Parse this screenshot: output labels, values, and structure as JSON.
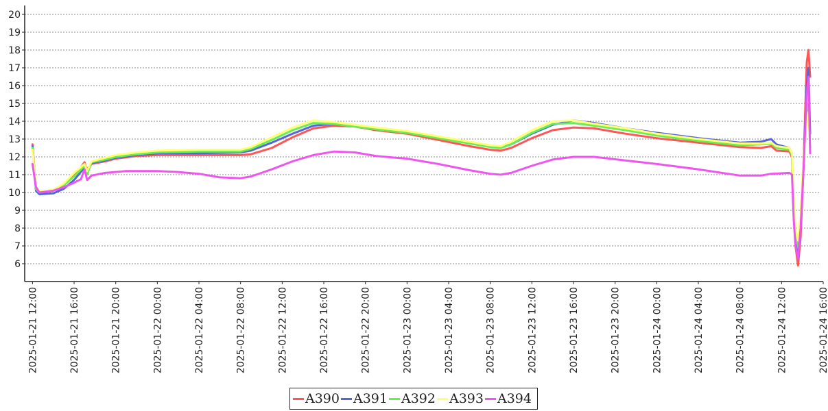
{
  "chart_data": {
    "type": "line",
    "title": "",
    "xlabel": "",
    "ylabel": "",
    "ylim": [
      5,
      20.5
    ],
    "xlim": [
      "2025-01-21 11:15",
      "2025-01-24 16:00"
    ],
    "yticks": [
      "6",
      "7",
      "8",
      "9",
      "10",
      "11",
      "12",
      "13",
      "14",
      "15",
      "16",
      "17",
      "18",
      "19",
      "20"
    ],
    "xticks": [
      "2025-01-21 12:00",
      "2025-01-21 16:00",
      "2025-01-21 20:00",
      "2025-01-22 00:00",
      "2025-01-22 04:00",
      "2025-01-22 08:00",
      "2025-01-22 12:00",
      "2025-01-22 16:00",
      "2025-01-22 20:00",
      "2025-01-23 00:00",
      "2025-01-23 04:00",
      "2025-01-23 08:00",
      "2025-01-23 12:00",
      "2025-01-23 16:00",
      "2025-01-23 20:00",
      "2025-01-24 00:00",
      "2025-01-24 04:00",
      "2025-01-24 08:00",
      "2025-01-24 12:00",
      "2025-01-24 16:00"
    ],
    "grid": true,
    "legend_position": "bottom-center",
    "series": [
      {
        "name": "A390",
        "color": "#ff5555",
        "points": [
          [
            "2025-01-21 12:00",
            12.7
          ],
          [
            "2025-01-21 12:20",
            10.2
          ],
          [
            "2025-01-21 12:40",
            9.95
          ],
          [
            "2025-01-21 13:30",
            10.05
          ],
          [
            "2025-01-21 14:30",
            10.2
          ],
          [
            "2025-01-21 15:30",
            10.7
          ],
          [
            "2025-01-21 16:30",
            11.3
          ],
          [
            "2025-01-21 17:00",
            11.7
          ],
          [
            "2025-01-21 17:15",
            11.2
          ],
          [
            "2025-01-21 17:40",
            11.6
          ],
          [
            "2025-01-21 19:00",
            11.75
          ],
          [
            "2025-01-21 20:00",
            11.9
          ],
          [
            "2025-01-21 22:00",
            12.05
          ],
          [
            "2025-01-22 00:00",
            12.1
          ],
          [
            "2025-01-22 04:00",
            12.1
          ],
          [
            "2025-01-22 08:00",
            12.1
          ],
          [
            "2025-01-22 09:00",
            12.15
          ],
          [
            "2025-01-22 11:00",
            12.5
          ],
          [
            "2025-01-22 13:00",
            13.1
          ],
          [
            "2025-01-22 15:00",
            13.6
          ],
          [
            "2025-01-22 17:00",
            13.75
          ],
          [
            "2025-01-22 19:00",
            13.7
          ],
          [
            "2025-01-22 21:00",
            13.5
          ],
          [
            "2025-01-23 00:00",
            13.3
          ],
          [
            "2025-01-23 03:00",
            12.95
          ],
          [
            "2025-01-23 06:00",
            12.6
          ],
          [
            "2025-01-23 08:00",
            12.4
          ],
          [
            "2025-01-23 09:00",
            12.35
          ],
          [
            "2025-01-23 10:00",
            12.5
          ],
          [
            "2025-01-23 12:00",
            13.05
          ],
          [
            "2025-01-23 14:00",
            13.5
          ],
          [
            "2025-01-23 16:00",
            13.65
          ],
          [
            "2025-01-23 18:00",
            13.6
          ],
          [
            "2025-01-23 21:00",
            13.3
          ],
          [
            "2025-01-24 00:00",
            13.05
          ],
          [
            "2025-01-24 04:00",
            12.8
          ],
          [
            "2025-01-24 08:00",
            12.55
          ],
          [
            "2025-01-24 10:00",
            12.5
          ],
          [
            "2025-01-24 11:00",
            12.6
          ],
          [
            "2025-01-24 11:30",
            12.35
          ],
          [
            "2025-01-24 12:45",
            12.3
          ],
          [
            "2025-01-24 13:00",
            12.0
          ],
          [
            "2025-01-24 13:10",
            9.0
          ],
          [
            "2025-01-24 13:20",
            7.0
          ],
          [
            "2025-01-24 13:35",
            5.9
          ],
          [
            "2025-01-24 13:50",
            7.5
          ],
          [
            "2025-01-24 14:05",
            11.0
          ],
          [
            "2025-01-24 14:25",
            17.3
          ],
          [
            "2025-01-24 14:35",
            18.0
          ],
          [
            "2025-01-24 14:45",
            16.5
          ]
        ]
      },
      {
        "name": "A391",
        "color": "#5566dd",
        "points": [
          [
            "2025-01-21 12:00",
            12.6
          ],
          [
            "2025-01-21 12:20",
            10.1
          ],
          [
            "2025-01-21 12:40",
            9.9
          ],
          [
            "2025-01-21 14:00",
            9.95
          ],
          [
            "2025-01-21 15:00",
            10.2
          ],
          [
            "2025-01-21 16:00",
            10.7
          ],
          [
            "2025-01-21 17:00",
            11.4
          ],
          [
            "2025-01-21 17:15",
            11.3
          ],
          [
            "2025-01-21 17:40",
            11.65
          ],
          [
            "2025-01-21 19:00",
            11.8
          ],
          [
            "2025-01-21 20:00",
            11.95
          ],
          [
            "2025-01-21 22:00",
            12.1
          ],
          [
            "2025-01-22 00:00",
            12.2
          ],
          [
            "2025-01-22 04:00",
            12.2
          ],
          [
            "2025-01-22 08:00",
            12.25
          ],
          [
            "2025-01-22 09:00",
            12.35
          ],
          [
            "2025-01-22 11:00",
            12.8
          ],
          [
            "2025-01-22 13:00",
            13.3
          ],
          [
            "2025-01-22 15:00",
            13.75
          ],
          [
            "2025-01-22 17:00",
            13.85
          ],
          [
            "2025-01-22 19:00",
            13.75
          ],
          [
            "2025-01-22 21:00",
            13.6
          ],
          [
            "2025-01-23 00:00",
            13.4
          ],
          [
            "2025-01-23 03:00",
            13.1
          ],
          [
            "2025-01-23 06:00",
            12.8
          ],
          [
            "2025-01-23 08:00",
            12.6
          ],
          [
            "2025-01-23 09:00",
            12.55
          ],
          [
            "2025-01-23 10:00",
            12.7
          ],
          [
            "2025-01-23 12:00",
            13.3
          ],
          [
            "2025-01-23 14:00",
            13.8
          ],
          [
            "2025-01-23 16:00",
            14.05
          ],
          [
            "2025-01-23 18:00",
            13.9
          ],
          [
            "2025-01-23 21:00",
            13.6
          ],
          [
            "2025-01-24 00:00",
            13.35
          ],
          [
            "2025-01-24 04:00",
            13.05
          ],
          [
            "2025-01-24 08:00",
            12.8
          ],
          [
            "2025-01-24 10:00",
            12.85
          ],
          [
            "2025-01-24 11:00",
            13.0
          ],
          [
            "2025-01-24 11:30",
            12.7
          ],
          [
            "2025-01-24 12:45",
            12.5
          ],
          [
            "2025-01-24 13:00",
            12.2
          ],
          [
            "2025-01-24 13:10",
            9.0
          ],
          [
            "2025-01-24 13:20",
            7.3
          ],
          [
            "2025-01-24 13:35",
            6.3
          ],
          [
            "2025-01-24 13:50",
            8.0
          ],
          [
            "2025-01-24 14:05",
            11.0
          ],
          [
            "2025-01-24 14:25",
            16.0
          ],
          [
            "2025-01-24 14:35",
            17.0
          ],
          [
            "2025-01-24 14:45",
            13.3
          ]
        ]
      },
      {
        "name": "A392",
        "color": "#66ee55",
        "points": [
          [
            "2025-01-21 12:00",
            12.5
          ],
          [
            "2025-01-21 12:20",
            10.2
          ],
          [
            "2025-01-21 12:40",
            10.0
          ],
          [
            "2025-01-21 14:00",
            10.1
          ],
          [
            "2025-01-21 15:00",
            10.4
          ],
          [
            "2025-01-21 16:00",
            10.9
          ],
          [
            "2025-01-21 17:00",
            11.5
          ],
          [
            "2025-01-21 17:15",
            11.0
          ],
          [
            "2025-01-21 17:40",
            11.7
          ],
          [
            "2025-01-21 19:00",
            11.85
          ],
          [
            "2025-01-21 20:00",
            12.0
          ],
          [
            "2025-01-21 22:00",
            12.15
          ],
          [
            "2025-01-22 00:00",
            12.25
          ],
          [
            "2025-01-22 04:00",
            12.3
          ],
          [
            "2025-01-22 08:00",
            12.3
          ],
          [
            "2025-01-22 09:00",
            12.45
          ],
          [
            "2025-01-22 11:00",
            12.95
          ],
          [
            "2025-01-22 13:00",
            13.5
          ],
          [
            "2025-01-22 15:00",
            13.9
          ],
          [
            "2025-01-22 17:00",
            13.85
          ],
          [
            "2025-01-22 19:00",
            13.7
          ],
          [
            "2025-01-22 21:00",
            13.55
          ],
          [
            "2025-01-23 00:00",
            13.35
          ],
          [
            "2025-01-23 03:00",
            13.05
          ],
          [
            "2025-01-23 06:00",
            12.75
          ],
          [
            "2025-01-23 08:00",
            12.55
          ],
          [
            "2025-01-23 09:00",
            12.5
          ],
          [
            "2025-01-23 10:00",
            12.7
          ],
          [
            "2025-01-23 12:00",
            13.35
          ],
          [
            "2025-01-23 14:00",
            13.85
          ],
          [
            "2025-01-23 16:00",
            13.9
          ],
          [
            "2025-01-23 18:00",
            13.75
          ],
          [
            "2025-01-23 21:00",
            13.5
          ],
          [
            "2025-01-24 00:00",
            13.2
          ],
          [
            "2025-01-24 04:00",
            12.9
          ],
          [
            "2025-01-24 08:00",
            12.65
          ],
          [
            "2025-01-24 10:00",
            12.7
          ],
          [
            "2025-01-24 11:00",
            12.75
          ],
          [
            "2025-01-24 11:30",
            12.5
          ],
          [
            "2025-01-24 12:45",
            12.4
          ],
          [
            "2025-01-24 13:00",
            12.1
          ],
          [
            "2025-01-24 13:10",
            9.5
          ],
          [
            "2025-01-24 13:20",
            7.8
          ],
          [
            "2025-01-24 13:35",
            7.0
          ],
          [
            "2025-01-24 13:50",
            8.5
          ],
          [
            "2025-01-24 14:05",
            11.5
          ],
          [
            "2025-01-24 14:25",
            14.5
          ],
          [
            "2025-01-24 14:35",
            15.0
          ],
          [
            "2025-01-24 14:45",
            12.5
          ]
        ]
      },
      {
        "name": "A393",
        "color": "#ffff77",
        "points": [
          [
            "2025-01-21 12:00",
            12.4
          ],
          [
            "2025-01-21 12:20",
            10.3
          ],
          [
            "2025-01-21 12:40",
            10.05
          ],
          [
            "2025-01-21 14:00",
            10.15
          ],
          [
            "2025-01-21 15:00",
            10.5
          ],
          [
            "2025-01-21 16:00",
            11.1
          ],
          [
            "2025-01-21 17:00",
            11.6
          ],
          [
            "2025-01-21 17:15",
            11.2
          ],
          [
            "2025-01-21 17:40",
            11.75
          ],
          [
            "2025-01-21 19:00",
            11.95
          ],
          [
            "2025-01-21 20:00",
            12.1
          ],
          [
            "2025-01-21 22:00",
            12.25
          ],
          [
            "2025-01-22 00:00",
            12.35
          ],
          [
            "2025-01-22 04:00",
            12.4
          ],
          [
            "2025-01-22 08:00",
            12.4
          ],
          [
            "2025-01-22 09:00",
            12.55
          ],
          [
            "2025-01-22 11:00",
            13.1
          ],
          [
            "2025-01-22 13:00",
            13.65
          ],
          [
            "2025-01-22 15:00",
            14.05
          ],
          [
            "2025-01-22 17:00",
            13.95
          ],
          [
            "2025-01-22 19:00",
            13.8
          ],
          [
            "2025-01-22 21:00",
            13.65
          ],
          [
            "2025-01-23 00:00",
            13.45
          ],
          [
            "2025-01-23 03:00",
            13.15
          ],
          [
            "2025-01-23 06:00",
            12.85
          ],
          [
            "2025-01-23 08:00",
            12.65
          ],
          [
            "2025-01-23 09:00",
            12.6
          ],
          [
            "2025-01-23 10:00",
            12.85
          ],
          [
            "2025-01-23 12:00",
            13.5
          ],
          [
            "2025-01-23 14:00",
            14.0
          ],
          [
            "2025-01-23 16:00",
            14.05
          ],
          [
            "2025-01-23 18:00",
            13.85
          ],
          [
            "2025-01-23 21:00",
            13.6
          ],
          [
            "2025-01-24 00:00",
            13.3
          ],
          [
            "2025-01-24 04:00",
            13.0
          ],
          [
            "2025-01-24 08:00",
            12.75
          ],
          [
            "2025-01-24 10:00",
            12.75
          ],
          [
            "2025-01-24 11:00",
            12.8
          ],
          [
            "2025-01-24 11:30",
            12.6
          ],
          [
            "2025-01-24 12:45",
            12.5
          ],
          [
            "2025-01-24 13:00",
            12.2
          ],
          [
            "2025-01-24 13:10",
            9.8
          ],
          [
            "2025-01-24 13:20",
            8.0
          ],
          [
            "2025-01-24 13:35",
            7.3
          ],
          [
            "2025-01-24 13:50",
            8.8
          ],
          [
            "2025-01-24 14:05",
            11.8
          ],
          [
            "2025-01-24 14:25",
            14.0
          ],
          [
            "2025-01-24 14:35",
            14.5
          ],
          [
            "2025-01-24 14:45",
            12.8
          ]
        ]
      },
      {
        "name": "A394",
        "color": "#ee55ee",
        "points": [
          [
            "2025-01-21 12:00",
            11.6
          ],
          [
            "2025-01-21 12:20",
            10.3
          ],
          [
            "2025-01-21 12:40",
            10.0
          ],
          [
            "2025-01-21 14:00",
            10.1
          ],
          [
            "2025-01-21 15:00",
            10.3
          ],
          [
            "2025-01-21 16:00",
            10.55
          ],
          [
            "2025-01-21 16:40",
            10.75
          ],
          [
            "2025-01-21 17:00",
            11.3
          ],
          [
            "2025-01-21 17:15",
            10.7
          ],
          [
            "2025-01-21 17:40",
            10.95
          ],
          [
            "2025-01-21 19:00",
            11.1
          ],
          [
            "2025-01-21 21:00",
            11.2
          ],
          [
            "2025-01-22 00:00",
            11.2
          ],
          [
            "2025-01-22 02:00",
            11.15
          ],
          [
            "2025-01-22 04:00",
            11.05
          ],
          [
            "2025-01-22 06:00",
            10.85
          ],
          [
            "2025-01-22 08:00",
            10.8
          ],
          [
            "2025-01-22 09:00",
            10.9
          ],
          [
            "2025-01-22 11:00",
            11.3
          ],
          [
            "2025-01-22 13:00",
            11.75
          ],
          [
            "2025-01-22 15:00",
            12.1
          ],
          [
            "2025-01-22 17:00",
            12.3
          ],
          [
            "2025-01-22 19:00",
            12.25
          ],
          [
            "2025-01-22 21:00",
            12.05
          ],
          [
            "2025-01-23 00:00",
            11.9
          ],
          [
            "2025-01-23 03:00",
            11.6
          ],
          [
            "2025-01-23 06:00",
            11.25
          ],
          [
            "2025-01-23 08:00",
            11.05
          ],
          [
            "2025-01-23 09:00",
            11.0
          ],
          [
            "2025-01-23 10:00",
            11.1
          ],
          [
            "2025-01-23 12:00",
            11.5
          ],
          [
            "2025-01-23 14:00",
            11.85
          ],
          [
            "2025-01-23 16:00",
            12.0
          ],
          [
            "2025-01-23 18:00",
            12.0
          ],
          [
            "2025-01-23 21:00",
            11.8
          ],
          [
            "2025-01-24 00:00",
            11.6
          ],
          [
            "2025-01-24 04:00",
            11.3
          ],
          [
            "2025-01-24 08:00",
            10.95
          ],
          [
            "2025-01-24 10:00",
            10.95
          ],
          [
            "2025-01-24 11:00",
            11.05
          ],
          [
            "2025-01-24 12:45",
            11.1
          ],
          [
            "2025-01-24 13:00",
            11.0
          ],
          [
            "2025-01-24 13:10",
            8.5
          ],
          [
            "2025-01-24 13:20",
            7.0
          ],
          [
            "2025-01-24 13:35",
            6.3
          ],
          [
            "2025-01-24 13:50",
            8.0
          ],
          [
            "2025-01-24 14:05",
            11.0
          ],
          [
            "2025-01-24 14:25",
            15.5
          ],
          [
            "2025-01-24 14:35",
            16.5
          ],
          [
            "2025-01-24 14:45",
            12.2
          ]
        ]
      }
    ]
  }
}
